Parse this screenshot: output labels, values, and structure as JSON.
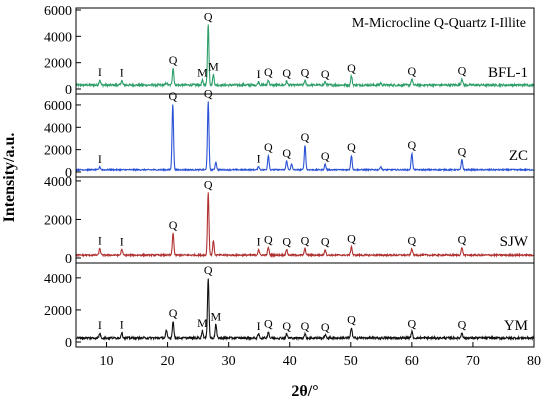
{
  "chart_data": {
    "type": "line",
    "xlabel": "2θ/°",
    "ylabel": "Intensity/a.u.",
    "xlim": [
      5,
      80
    ],
    "x_ticks": [
      10,
      20,
      30,
      40,
      50,
      60,
      70,
      80
    ],
    "legend": "M-Microcline  Q-Quartz  I-Illite",
    "legend_placement": "top-right",
    "panels": [
      {
        "name": "BFL-1",
        "ylim": [
          0,
          6000
        ],
        "y_ticks": [
          0,
          2000,
          4000,
          6000
        ],
        "color": "#2e9e6a",
        "baseline": 300,
        "peaks": [
          {
            "x": 8.9,
            "y": 700,
            "label": "I"
          },
          {
            "x": 12.5,
            "y": 650,
            "label": "I"
          },
          {
            "x": 19.8,
            "y": 450,
            "label": ""
          },
          {
            "x": 20.9,
            "y": 1600,
            "label": "Q"
          },
          {
            "x": 25.7,
            "y": 650,
            "label": "M"
          },
          {
            "x": 26.65,
            "y": 4900,
            "label": "Q"
          },
          {
            "x": 27.5,
            "y": 1100,
            "label": "M"
          },
          {
            "x": 34.9,
            "y": 550,
            "label": "I"
          },
          {
            "x": 36.5,
            "y": 700,
            "label": "Q"
          },
          {
            "x": 39.5,
            "y": 600,
            "label": "Q"
          },
          {
            "x": 42.5,
            "y": 650,
            "label": "Q"
          },
          {
            "x": 45.8,
            "y": 550,
            "label": "Q"
          },
          {
            "x": 50.1,
            "y": 1000,
            "label": "Q"
          },
          {
            "x": 54.9,
            "y": 450,
            "label": ""
          },
          {
            "x": 60.0,
            "y": 750,
            "label": "Q"
          },
          {
            "x": 68.2,
            "y": 800,
            "label": "Q"
          }
        ]
      },
      {
        "name": "ZC",
        "ylim": [
          0,
          6800
        ],
        "y_ticks": [
          0,
          2000,
          4000,
          6000
        ],
        "color": "#2a52d6",
        "baseline": 200,
        "peaks": [
          {
            "x": 8.9,
            "y": 450,
            "label": "I"
          },
          {
            "x": 20.85,
            "y": 6100,
            "label": "Q"
          },
          {
            "x": 26.65,
            "y": 6300,
            "label": "Q"
          },
          {
            "x": 27.9,
            "y": 900,
            "label": ""
          },
          {
            "x": 34.9,
            "y": 500,
            "label": "I"
          },
          {
            "x": 36.5,
            "y": 1500,
            "label": "Q"
          },
          {
            "x": 39.5,
            "y": 1000,
            "label": "Q"
          },
          {
            "x": 40.3,
            "y": 700,
            "label": ""
          },
          {
            "x": 42.5,
            "y": 2400,
            "label": "Q"
          },
          {
            "x": 45.8,
            "y": 700,
            "label": "Q"
          },
          {
            "x": 50.1,
            "y": 1500,
            "label": "Q"
          },
          {
            "x": 54.9,
            "y": 500,
            "label": ""
          },
          {
            "x": 60.0,
            "y": 1700,
            "label": "Q"
          },
          {
            "x": 68.2,
            "y": 1100,
            "label": "Q"
          }
        ]
      },
      {
        "name": "SJW",
        "ylim": [
          0,
          4100
        ],
        "y_ticks": [
          0,
          2000,
          4000
        ],
        "color": "#b03030",
        "baseline": 150,
        "peaks": [
          {
            "x": 8.9,
            "y": 500,
            "label": "I"
          },
          {
            "x": 12.5,
            "y": 450,
            "label": "I"
          },
          {
            "x": 20.9,
            "y": 1300,
            "label": "Q"
          },
          {
            "x": 26.65,
            "y": 3400,
            "label": "Q"
          },
          {
            "x": 27.5,
            "y": 900,
            "label": ""
          },
          {
            "x": 34.9,
            "y": 450,
            "label": "I"
          },
          {
            "x": 36.5,
            "y": 550,
            "label": "Q"
          },
          {
            "x": 39.5,
            "y": 450,
            "label": "Q"
          },
          {
            "x": 42.5,
            "y": 500,
            "label": "Q"
          },
          {
            "x": 45.8,
            "y": 450,
            "label": "Q"
          },
          {
            "x": 50.1,
            "y": 600,
            "label": "Q"
          },
          {
            "x": 60.0,
            "y": 500,
            "label": "Q"
          },
          {
            "x": 68.2,
            "y": 550,
            "label": "Q"
          }
        ]
      },
      {
        "name": "YM",
        "ylim": [
          0,
          4800
        ],
        "y_ticks": [
          0,
          2000,
          4000
        ],
        "color": "#111111",
        "baseline": 250,
        "peaks": [
          {
            "x": 8.9,
            "y": 550,
            "label": "I"
          },
          {
            "x": 12.5,
            "y": 600,
            "label": "I"
          },
          {
            "x": 19.8,
            "y": 700,
            "label": ""
          },
          {
            "x": 20.9,
            "y": 1300,
            "label": "Q"
          },
          {
            "x": 25.7,
            "y": 700,
            "label": "M"
          },
          {
            "x": 26.65,
            "y": 4000,
            "label": "Q"
          },
          {
            "x": 27.9,
            "y": 1100,
            "label": "M"
          },
          {
            "x": 34.9,
            "y": 500,
            "label": "I"
          },
          {
            "x": 36.5,
            "y": 650,
            "label": "Q"
          },
          {
            "x": 39.5,
            "y": 500,
            "label": "Q"
          },
          {
            "x": 42.5,
            "y": 500,
            "label": "Q"
          },
          {
            "x": 45.8,
            "y": 450,
            "label": "Q"
          },
          {
            "x": 50.1,
            "y": 900,
            "label": "Q"
          },
          {
            "x": 60.0,
            "y": 650,
            "label": "Q"
          },
          {
            "x": 68.2,
            "y": 600,
            "label": "Q"
          }
        ]
      }
    ]
  }
}
